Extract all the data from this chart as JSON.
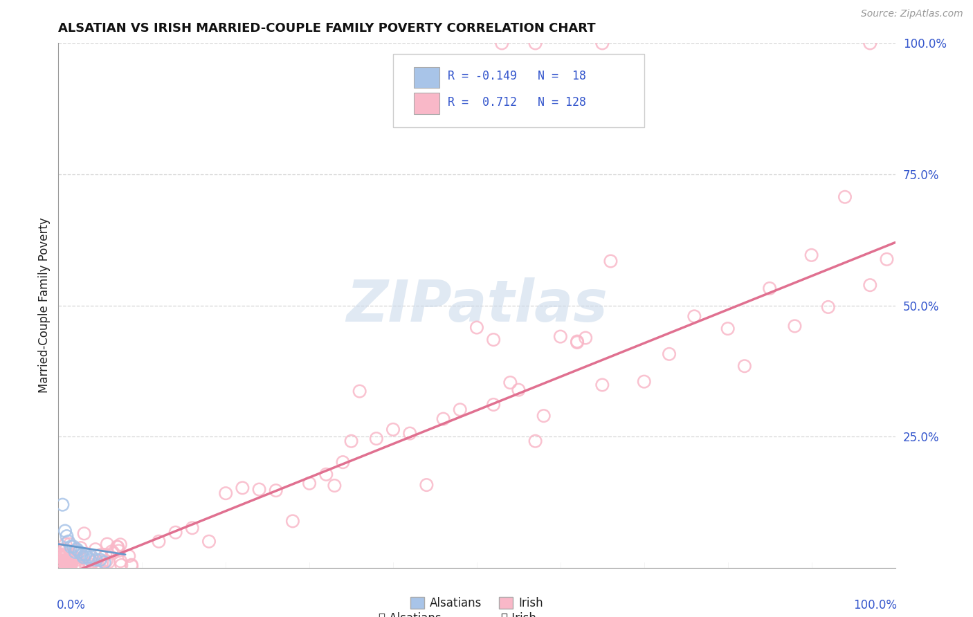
{
  "title": "ALSATIAN VS IRISH MARRIED-COUPLE FAMILY POVERTY CORRELATION CHART",
  "source": "Source: ZipAtlas.com",
  "ylabel": "Married-Couple Family Poverty",
  "watermark": "ZIPatlas",
  "alsatian_color": "#a8c4e8",
  "alsatian_edge": "#7aaadd",
  "irish_color": "#f9b8c8",
  "irish_edge": "#e87898",
  "alsatian_R": -0.149,
  "alsatian_N": 18,
  "irish_R": 0.712,
  "irish_N": 128,
  "legend_text_color": "#3355cc",
  "background_color": "#ffffff",
  "grid_color": "#cccccc",
  "irish_line_color": "#e07090",
  "alsatian_line_color": "#6699cc"
}
